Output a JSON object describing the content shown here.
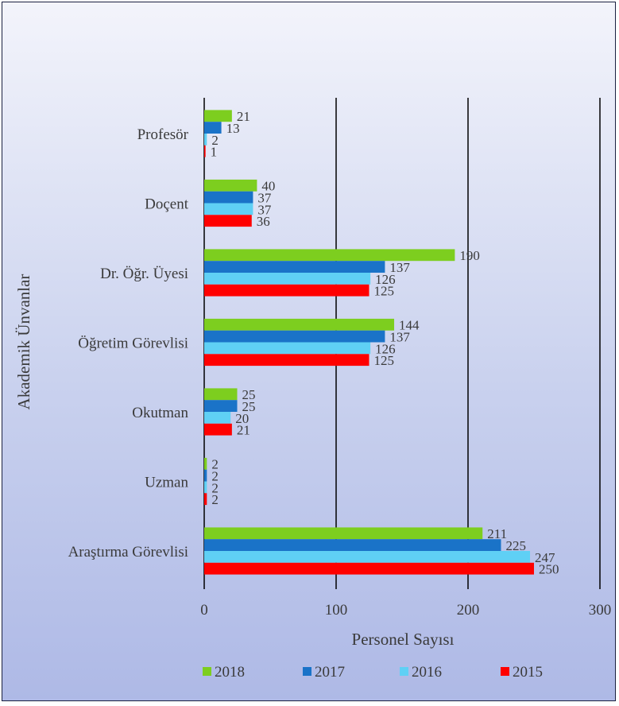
{
  "chart_data": {
    "type": "bar",
    "orientation": "horizontal",
    "title": "",
    "xlabel": "Personel Sayısı",
    "ylabel": "Akademik Ünvanlar",
    "xlim": [
      0,
      300
    ],
    "x_ticks": [
      "0",
      "100",
      "200",
      "300"
    ],
    "grid": "vertical major gridlines",
    "legend_position": "bottom",
    "categories": [
      "Profesör",
      "Doçent",
      "Dr. Öğr. Üyesi",
      "Öğretim Görevlisi",
      "Okutman",
      "Uzman",
      "Araştırma Görevlisi"
    ],
    "series": [
      {
        "name": "2018",
        "color": "#7dce1f",
        "values": [
          21,
          40,
          190,
          144,
          25,
          2,
          211
        ]
      },
      {
        "name": "2017",
        "color": "#1a73c8",
        "values": [
          13,
          37,
          137,
          137,
          25,
          2,
          225
        ]
      },
      {
        "name": "2016",
        "color": "#5fd0f5",
        "values": [
          2,
          37,
          126,
          126,
          20,
          2,
          247
        ]
      },
      {
        "name": "2015",
        "color": "#ff0000",
        "values": [
          1,
          36,
          125,
          125,
          21,
          2,
          250
        ]
      }
    ]
  }
}
